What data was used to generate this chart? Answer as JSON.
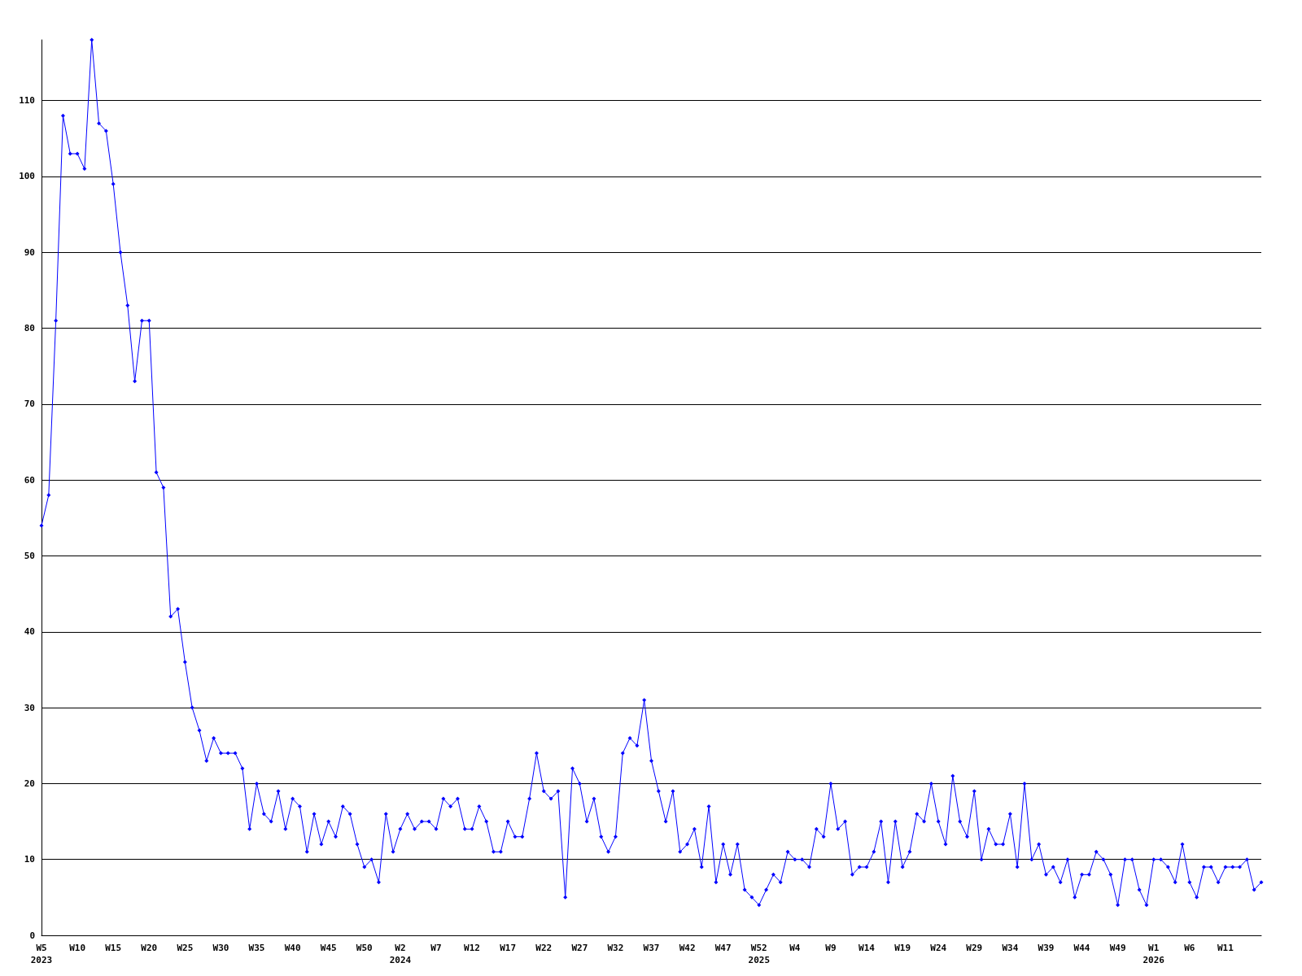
{
  "chart_data": {
    "type": "line",
    "categories": [
      "W5\n2023",
      null,
      null,
      null,
      null,
      "W10",
      null,
      null,
      null,
      null,
      "W15",
      null,
      null,
      null,
      null,
      "W20",
      null,
      null,
      null,
      null,
      "W25",
      null,
      null,
      null,
      null,
      "W30",
      null,
      null,
      null,
      null,
      "W35",
      null,
      null,
      null,
      null,
      "W40",
      null,
      null,
      null,
      null,
      "W45",
      null,
      null,
      null,
      null,
      "W50",
      null,
      null,
      null,
      null,
      "W2\n2024",
      null,
      null,
      null,
      null,
      "W7",
      null,
      null,
      null,
      null,
      "W12",
      null,
      null,
      null,
      null,
      "W17",
      null,
      null,
      null,
      null,
      "W22",
      null,
      null,
      null,
      null,
      "W27",
      null,
      null,
      null,
      null,
      "W32",
      null,
      null,
      null,
      null,
      "W37",
      null,
      null,
      null,
      null,
      "W42",
      null,
      null,
      null,
      null,
      "W47",
      null,
      null,
      null,
      null,
      "W52\n2025",
      null,
      null,
      null,
      null,
      "W4",
      null,
      null,
      null,
      null,
      "W9",
      null,
      null,
      null,
      null,
      "W14",
      null,
      null,
      null,
      null,
      "W19",
      null,
      null,
      null,
      null,
      "W24",
      null,
      null,
      null,
      null,
      "W29",
      null,
      null,
      null,
      null,
      "W34",
      null,
      null,
      null,
      null,
      "W39",
      null,
      null,
      null,
      null,
      "W44",
      null,
      null,
      null,
      null,
      "W49",
      null,
      null,
      null,
      null,
      "W1\n2026",
      null,
      null,
      null,
      null,
      "W6",
      null,
      null,
      null,
      null,
      "W11",
      null,
      null,
      null,
      null,
      null
    ],
    "series": [
      {
        "color": "#0000ff",
        "values": [
          54,
          58,
          81,
          108,
          103,
          103,
          101,
          118,
          107,
          106,
          99,
          90,
          83,
          73,
          81,
          81,
          61,
          59,
          42,
          43,
          36,
          30,
          27,
          23,
          26,
          24,
          24,
          24,
          22,
          14,
          20,
          16,
          15,
          19,
          14,
          18,
          17,
          11,
          16,
          12,
          15,
          13,
          17,
          16,
          12,
          9,
          10,
          7,
          16,
          11,
          14,
          16,
          14,
          15,
          15,
          14,
          18,
          17,
          18,
          14,
          14,
          17,
          15,
          11,
          11,
          15,
          13,
          13,
          18,
          24,
          19,
          18,
          19,
          5,
          22,
          20,
          15,
          18,
          13,
          11,
          13,
          24,
          26,
          25,
          31,
          23,
          19,
          15,
          19,
          11,
          12,
          14,
          9,
          17,
          7,
          12,
          8,
          12,
          6,
          5,
          4,
          6,
          8,
          7,
          11,
          10,
          10,
          9,
          14,
          13,
          20,
          14,
          15,
          8,
          9,
          9,
          11,
          15,
          7,
          15,
          9,
          11,
          16,
          15,
          20,
          15,
          12,
          21,
          15,
          13,
          19,
          10,
          14,
          12,
          12,
          16,
          9,
          20,
          10,
          12,
          8,
          9,
          7,
          10,
          5,
          8,
          8,
          11,
          10,
          8,
          4,
          10,
          10,
          6,
          4,
          10,
          10,
          9,
          7,
          12,
          7,
          5,
          9,
          9,
          7,
          9,
          9,
          9,
          10,
          6,
          7
        ]
      }
    ],
    "ylim": [
      0,
      118
    ],
    "yticks": [
      0,
      10,
      20,
      30,
      40,
      50,
      60,
      70,
      80,
      90,
      100,
      110
    ],
    "grid": "y",
    "marker": "diamond",
    "line_style": "solid"
  }
}
